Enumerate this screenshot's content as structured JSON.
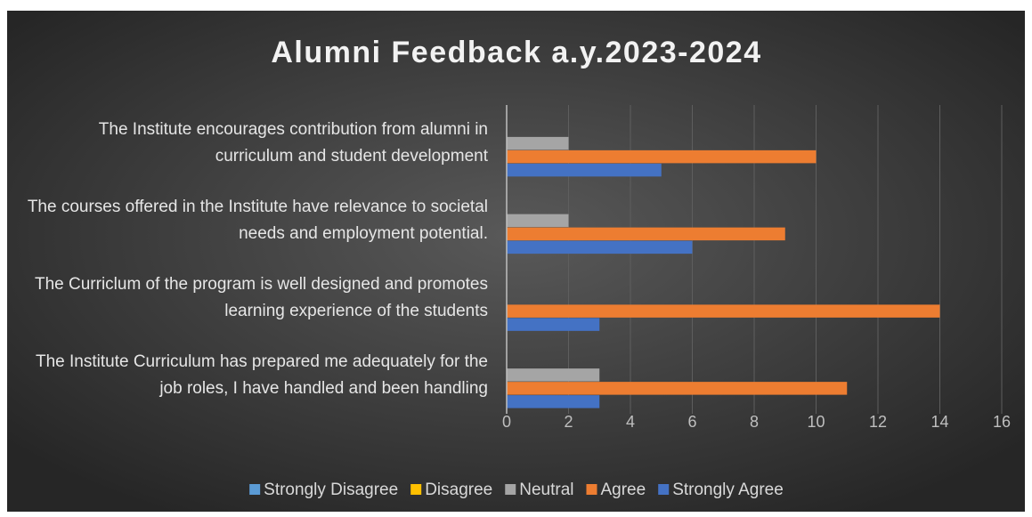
{
  "chart_data": {
    "type": "hbar",
    "title": "Alumni Feedback a.y.2023-2024",
    "categories": [
      "The Institute encourages contribution from alumni in curriculum and student development",
      "The courses offered in the Institute have relevance to societal needs and employment potential.",
      "The Curriclum of the program is well designed and promotes learning experience of the students",
      "The Institute Curriculum has prepared me adequately for the job roles, I have handled and been handling"
    ],
    "series": [
      {
        "name": "Strongly Disagree",
        "color": "#5b9bd5",
        "values": [
          0,
          0,
          0,
          0
        ]
      },
      {
        "name": "Disagree",
        "color": "#ffc000",
        "values": [
          0,
          0,
          0,
          0
        ]
      },
      {
        "name": "Neutral",
        "color": "#a5a5a5",
        "values": [
          2,
          2,
          0,
          3
        ]
      },
      {
        "name": "Agree",
        "color": "#ed7d31",
        "values": [
          10,
          9,
          14,
          11
        ]
      },
      {
        "name": "Strongly Agree",
        "color": "#4472c4",
        "values": [
          5,
          6,
          3,
          3
        ]
      }
    ],
    "xlim": [
      0,
      16
    ],
    "xticks": [
      0,
      2,
      4,
      6,
      8,
      10,
      12,
      14,
      16
    ],
    "grid": true,
    "legend": "bottom"
  }
}
